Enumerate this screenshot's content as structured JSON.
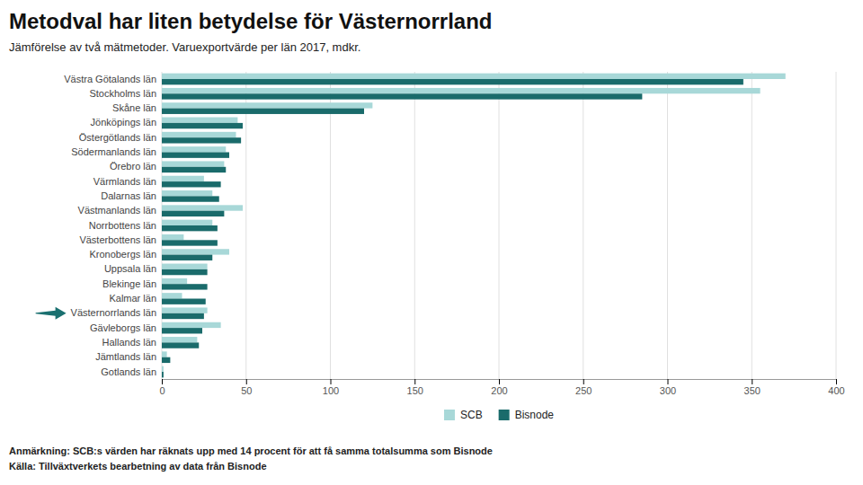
{
  "chart_data": {
    "type": "bar",
    "orientation": "horizontal",
    "title": "Metodval har liten betydelse för Västernorrland",
    "subtitle": "Jämförelse av två mätmetoder. Varuexportvärde per län 2017, mdkr.",
    "annotations": [
      "Anmärkning: SCB:s värden har räknats upp med 14 procent för att få samma totalsumma som Bisnode",
      "Källa: Tillväxtverkets bearbetning av data från Bisnode"
    ],
    "categories": [
      "Västra Götalands län",
      "Stockholms län",
      "Skåne län",
      "Jönköpings län",
      "Östergötlands län",
      "Södermanlands län",
      "Örebro län",
      "Värmlands län",
      "Dalarnas län",
      "Västmanlands län",
      "Norrbottens län",
      "Västerbottens län",
      "Kronobergs län",
      "Uppsala län",
      "Blekinge län",
      "Kalmar län",
      "Västernorrlands län",
      "Gävleborgs län",
      "Hallands län",
      "Jämtlands län",
      "Gotlands län"
    ],
    "series": [
      {
        "name": "SCB",
        "color": "#a8d8d8",
        "values": [
          370,
          355,
          125,
          45,
          44,
          38,
          37,
          25,
          30,
          48,
          30,
          13,
          40,
          27,
          15,
          12,
          27,
          35,
          21,
          3,
          1
        ]
      },
      {
        "name": "Bisnode",
        "color": "#1a6b6b",
        "values": [
          345,
          285,
          120,
          48,
          47,
          40,
          38,
          35,
          34,
          37,
          33,
          33,
          30,
          27,
          27,
          26,
          25,
          24,
          22,
          5,
          1
        ]
      }
    ],
    "arrow": {
      "category": "Västernorrlands län",
      "color": "#1a7070"
    },
    "xlim": [
      0,
      400
    ],
    "xticks": [
      0,
      50,
      100,
      150,
      200,
      250,
      300,
      350,
      400
    ],
    "grid": true,
    "legend": "bottom"
  }
}
